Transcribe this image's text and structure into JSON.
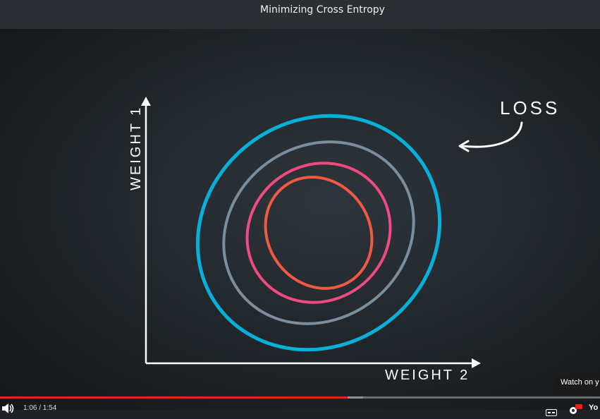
{
  "window": {
    "title": "Minimizing Cross Entropy"
  },
  "diagram": {
    "y_axis_label": "WEIGHT 1",
    "x_axis_label": "WEIGHT 2",
    "annotation": "LOSS",
    "contour_colors": [
      "#06b0d8",
      "#7a8e9d",
      "#ef4a81",
      "#f05a45"
    ],
    "axis_color": "#ffffff"
  },
  "player": {
    "watch_label": "Watch on y",
    "time_current": "1:06",
    "time_total": "1:54",
    "time_display": "1:06 / 1:54",
    "progress_fraction": 0.579,
    "buffer_fraction": 0.605,
    "accent_color": "#e62117",
    "icons": [
      "volume-icon",
      "captions-icon",
      "settings-hd-icon",
      "youtube-logo"
    ],
    "youtube_logo_text": "Yo"
  }
}
